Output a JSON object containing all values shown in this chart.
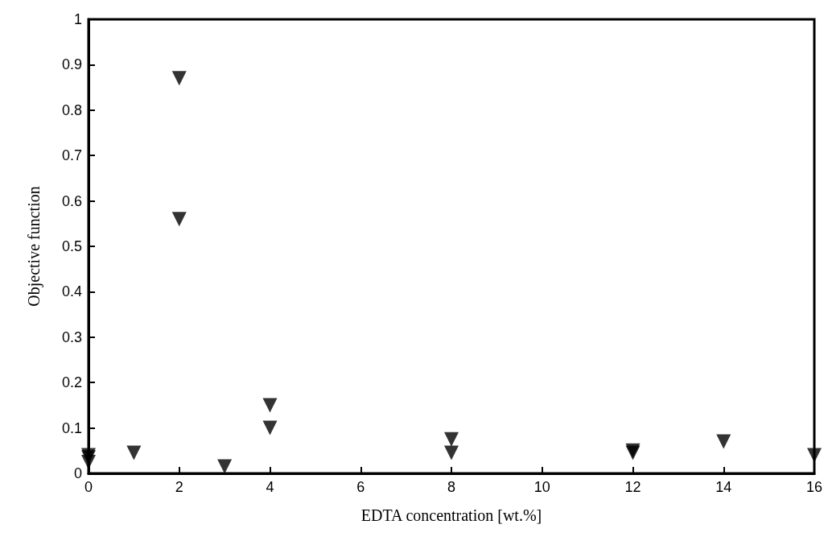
{
  "chart_data": {
    "type": "scatter",
    "xlabel": "EDTA concentration [wt.%]",
    "ylabel": "Objective function",
    "x": [
      0,
      0,
      0,
      1,
      2,
      2,
      3,
      4,
      4,
      8,
      8,
      12,
      12,
      14,
      16
    ],
    "series": [
      {
        "color": "#000000",
        "values": [
          0.04,
          0.035,
          0.025,
          0.045,
          0.87,
          0.56,
          0.015,
          0.15,
          0.1,
          0.075,
          0.045,
          0.05,
          0.045,
          0.07,
          0.04
        ]
      }
    ],
    "xlim": [
      0,
      16
    ],
    "xticks": [
      0,
      2,
      4,
      6,
      8,
      10,
      12,
      14,
      16
    ],
    "ylim": [
      0,
      1
    ],
    "yticks": [
      0,
      0.1,
      0.2,
      0.3,
      0.4,
      0.5,
      0.6,
      0.7,
      0.8,
      0.9,
      1
    ],
    "grid": false,
    "marker": "triangle"
  }
}
